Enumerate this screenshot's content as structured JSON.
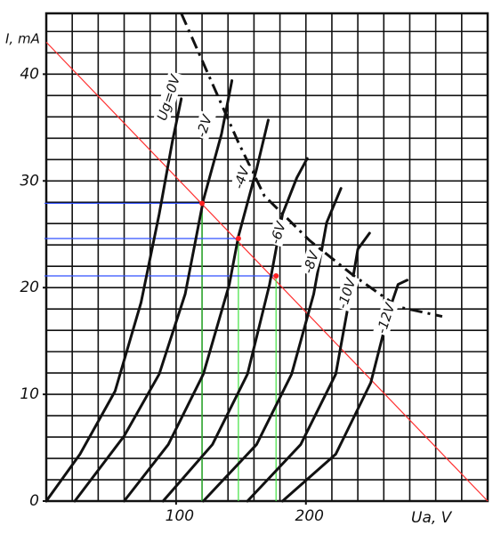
{
  "chart_data": {
    "type": "line",
    "x_label": "Ua, V",
    "y_label": "I, mA",
    "xlim": [
      0,
      340
    ],
    "ylim": [
      0,
      45.7
    ],
    "xticks": [
      100,
      200
    ],
    "yticks": [
      0,
      10,
      20,
      30,
      40
    ],
    "grid": true,
    "xgrid": [
      0,
      20,
      40,
      60,
      80,
      100,
      120,
      140,
      160,
      180,
      200,
      220,
      240,
      260,
      280,
      300,
      320,
      340
    ],
    "ygrid": [
      0,
      2,
      4,
      6,
      8,
      10,
      12,
      14,
      16,
      18,
      20,
      22,
      24,
      26,
      28,
      30,
      32,
      34,
      36,
      38,
      40,
      42,
      44
    ],
    "series": [
      {
        "name": "Ug=0V",
        "color": "#111111",
        "x": [
          0,
          26,
          53,
          73,
          87,
          97,
          104
        ],
        "values": [
          0,
          4.4,
          10.3,
          18.6,
          26.9,
          33.6,
          37.7
        ]
      },
      {
        "name": "-2V",
        "color": "#111111",
        "x": [
          22,
          60,
          87,
          107,
          121,
          135,
          143
        ],
        "values": [
          0,
          6.1,
          11.9,
          19.4,
          28.2,
          34.4,
          39.4
        ]
      },
      {
        "name": "-4V",
        "color": "#111111",
        "x": [
          60,
          94,
          121,
          141,
          148,
          162,
          171
        ],
        "values": [
          0,
          5.3,
          11.9,
          20.3,
          24.8,
          31.1,
          35.7
        ]
      },
      {
        "name": "-6V",
        "color": "#111111",
        "x": [
          90,
          128,
          155,
          172,
          182,
          193,
          201
        ],
        "values": [
          0,
          5.3,
          11.9,
          20.3,
          26.9,
          30.3,
          32.1
        ]
      },
      {
        "name": "-8V",
        "color": "#111111",
        "x": [
          121,
          162,
          189,
          206,
          216,
          227
        ],
        "values": [
          0,
          5.3,
          11.9,
          19.4,
          26.1,
          29.3
        ]
      },
      {
        "name": "-10V",
        "color": "#111111",
        "x": [
          155,
          196,
          223,
          233,
          240,
          249
        ],
        "values": [
          0,
          5.3,
          11.9,
          18.6,
          23.6,
          25.1
        ]
      },
      {
        "name": "-12V",
        "color": "#111111",
        "x": [
          182,
          223,
          250,
          264,
          271,
          278
        ],
        "values": [
          0,
          4.4,
          11.1,
          17.8,
          20.3,
          20.7
        ]
      }
    ],
    "limit_curve": {
      "color": "#111111",
      "x": [
        104,
        148,
        168,
        203,
        237,
        271,
        305
      ],
      "values": [
        45.7,
        33.6,
        28.6,
        24.4,
        21.1,
        18.2,
        17.3
      ]
    },
    "load_line": {
      "color": "#ff3030",
      "x": [
        0,
        340
      ],
      "values": [
        43,
        0
      ]
    },
    "operating_points": {
      "color": "#ff2020",
      "h_color": "#3050ff",
      "v_color": "#40e040",
      "x": [
        120,
        148,
        177
      ],
      "values": [
        27.9,
        24.6,
        21.1
      ]
    }
  }
}
